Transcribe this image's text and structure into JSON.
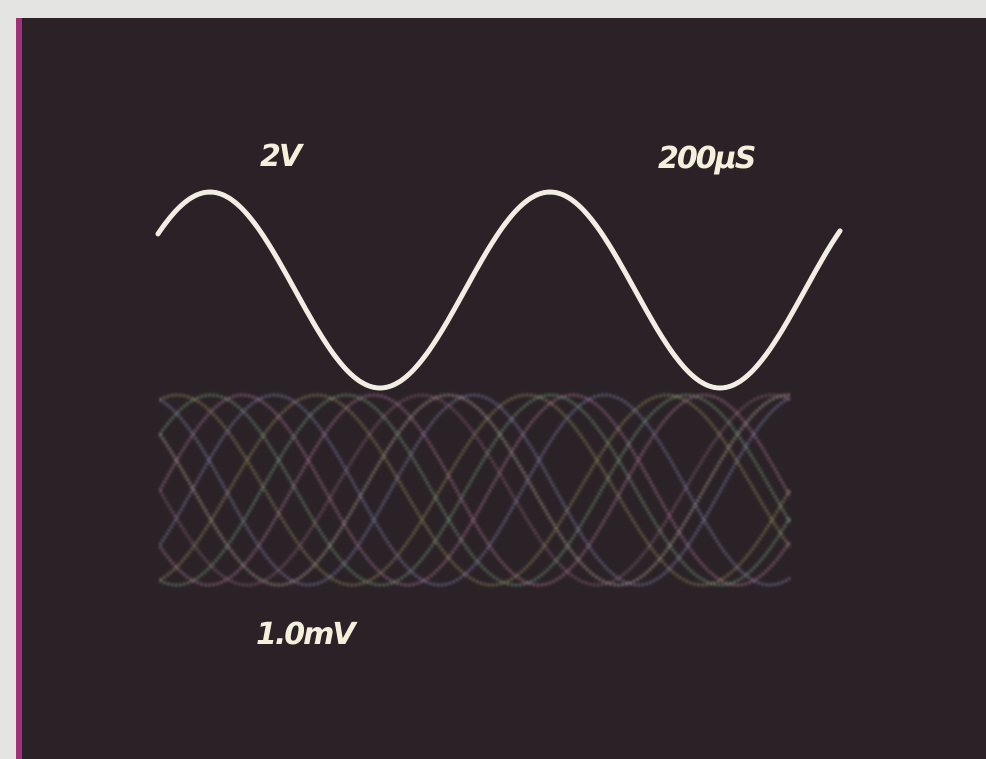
{
  "labels": {
    "channel1_scale": "2V",
    "timebase": "200µS",
    "channel2_scale": "1.0mV"
  }
}
